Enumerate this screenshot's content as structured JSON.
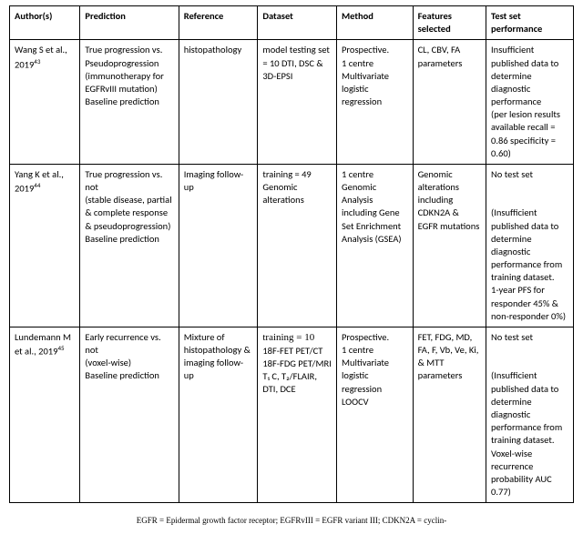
{
  "table": {
    "columns": [
      "Author(s)",
      "Prediction",
      "Reference",
      "Dataset",
      "Method",
      "Features selected",
      "Test set performance"
    ],
    "column_widths_pct": [
      12.5,
      17.5,
      14,
      14,
      13.5,
      13,
      15.5
    ],
    "border_color": "#000000",
    "font_size_pt": 8,
    "header_font_weight": 700,
    "background_color": "#ffffff",
    "rows": [
      {
        "author_name": "Wang S et al., 2019",
        "author_ref": "43",
        "prediction": "True progression vs.\nPseudoprogression (immunotherapy for EGFRvIII mutation)\nBaseline prediction",
        "reference": "histopathology",
        "dataset": "model testing set = 10 DTI, DSC & 3D-EPSI",
        "dataset_serif_prefix": "",
        "method": "Prospective.\n1 centre\nMultivariate logistic regression",
        "features": "CL, CBV, FA parameters",
        "testperf": "Insufficient published data to determine diagnostic performance\n(per lesion results available recall = 0.86 specificity = 0.60)"
      },
      {
        "author_name": "Yang K et al., 2019",
        "author_ref": "44",
        "prediction": "True progression vs.\nnot\n(stable disease, partial & complete response & pseudoprogression)\nBaseline prediction",
        "reference": "Imaging follow-up",
        "dataset": "training = 49\nGenomic alterations",
        "dataset_serif_prefix": "",
        "method": "1 centre\nGenomic Analysis including Gene Set Enrichment Analysis (GSEA)",
        "features": "Genomic alterations including CDKN2A & EGFR mutations",
        "testperf": "No test set\n\n(Insufficient published data to determine diagnostic performance from training dataset.\n1-year PFS for responder 45% & non-responder 0%)"
      },
      {
        "author_name": "Lundemann M et al., 2019",
        "author_ref": "45",
        "prediction": "Early recurrence vs.\nnot\n(voxel-wise)\nBaseline prediction",
        "reference": "Mixture of histopathology & imaging follow-up",
        "dataset_serif_prefix": "training = 10",
        "dataset": "18F-FET PET/CT\n18F-FDG PET/MRI T₁ C, T₂/FLAIR, DTI, DCE",
        "method": "Prospective.\n1 centre\nMultivariate logistic regression LOOCV",
        "features": "FET, FDG, MD, FA, F, Vb, Ve, Ki, & MTT parameters",
        "testperf": "No test set\n\n(Insufficient published data to determine diagnostic performance from training dataset.\nVoxel-wise recurrence probability AUC 0.77)"
      }
    ]
  },
  "footnote": "EGFR = Epidermal growth factor receptor; EGFRvIII = EGFR variant III; CDKN2A = cyclin-"
}
